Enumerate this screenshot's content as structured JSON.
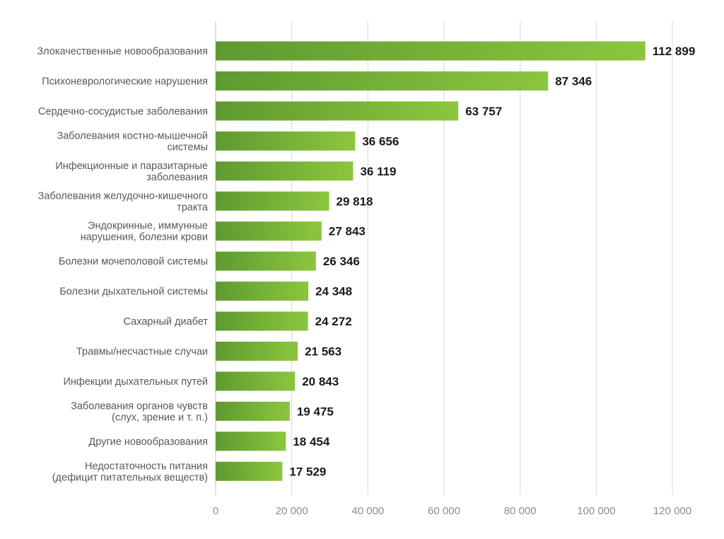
{
  "chart_data": {
    "type": "bar",
    "orientation": "horizontal",
    "title": "",
    "xlabel": "",
    "ylabel": "",
    "xlim": [
      0,
      120000
    ],
    "xticks": [
      0,
      20000,
      40000,
      60000,
      80000,
      100000,
      120000
    ],
    "xtick_labels": [
      "0",
      "20 000",
      "40 000",
      "60 000",
      "80 000",
      "100 000",
      "120 000"
    ],
    "grid": "vertical",
    "legend": "none",
    "bar_gradient": [
      "#5e9a30",
      "#8cc63f"
    ],
    "categories": [
      [
        "Злокачественные новообразования"
      ],
      [
        "Психоневрологические нарушения"
      ],
      [
        "Сердечно-сосудистые заболевания"
      ],
      [
        "Заболевания костно-мышечной",
        "системы"
      ],
      [
        "Инфекционные и паразитарные",
        "заболевания"
      ],
      [
        "Заболевания желудочно-кишечного",
        "тракта"
      ],
      [
        "Эндокринные, иммунные",
        "нарушения, болезни крови"
      ],
      [
        "Болезни мочеполовой системы"
      ],
      [
        "Болезни дыхательной системы"
      ],
      [
        "Сахарный диабет"
      ],
      [
        "Травмы/несчастные случаи"
      ],
      [
        "Инфекции дыхательных путей"
      ],
      [
        "Заболевания органов чувств",
        "(слух, зрение и т. п.)"
      ],
      [
        "Другие новообразования"
      ],
      [
        "Недостаточность питания",
        "(дефицит питательных веществ)"
      ]
    ],
    "values": [
      112899,
      87346,
      63757,
      36656,
      36119,
      29818,
      27843,
      26346,
      24348,
      24272,
      21563,
      20843,
      19475,
      18454,
      17529
    ],
    "value_labels": [
      "112 899",
      "87 346",
      "63 757",
      "36 656",
      "36 119",
      "29 818",
      "27 843",
      "26 346",
      "24 348",
      "24 272",
      "21 563",
      "20 843",
      "19 475",
      "18 454",
      "17 529"
    ]
  }
}
